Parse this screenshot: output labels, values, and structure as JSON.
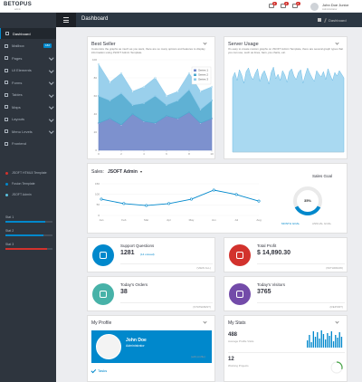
{
  "brand": {
    "name": "BETOPUS",
    "tagline": "admin"
  },
  "header": {
    "user": "John Doe Junior",
    "role": "Administrator",
    "badges": [
      "3",
      "4",
      "2"
    ]
  },
  "breadcrumb": {
    "title": "Dashboard",
    "trail": "Dashboard"
  },
  "sidebar": {
    "menu": [
      {
        "label": "Dashboard"
      },
      {
        "label": "Mailbox",
        "badge": "182"
      },
      {
        "label": "Pages",
        "submenu": true
      },
      {
        "label": "UI Elements",
        "submenu": true
      },
      {
        "label": "Forms",
        "submenu": true
      },
      {
        "label": "Tables",
        "submenu": true
      },
      {
        "label": "Maps",
        "submenu": true
      },
      {
        "label": "Layouts",
        "submenu": true
      },
      {
        "label": "Menu Levels",
        "submenu": true
      },
      {
        "label": "Frontend"
      }
    ],
    "projects": [
      {
        "label": "JSOFT HTML5 Template",
        "color": "#d2322d"
      },
      {
        "label": "Fusion Template",
        "color": "#0088cc"
      },
      {
        "label": "JSOFT Admin",
        "color": "#5bc0de"
      }
    ],
    "stats": [
      {
        "label": "Stat 1",
        "value": 85,
        "color": "#0088cc"
      },
      {
        "label": "Stat 2",
        "value": 80,
        "color": "#0088cc"
      },
      {
        "label": "Stat 3",
        "value": 88,
        "color": "#d2322d"
      }
    ]
  },
  "chart_data": [
    {
      "type": "area",
      "stacked": true,
      "title": "Best Seller",
      "subtitle": "Customize the graphs as much as you want, there are so many options and features to display information using JSOFT Admin Template.",
      "x": [
        0,
        1,
        2,
        3,
        4,
        5,
        6,
        7,
        8,
        9,
        10
      ],
      "series": [
        {
          "name": "Series 1",
          "color": "#6f85c9",
          "values": [
            30,
            35,
            28,
            40,
            32,
            30,
            38,
            35,
            42,
            30,
            35
          ]
        },
        {
          "name": "Series 2",
          "color": "#4ea8cf",
          "values": [
            30,
            20,
            35,
            10,
            20,
            30,
            12,
            20,
            25,
            15,
            20
          ]
        },
        {
          "name": "Series 3",
          "color": "#8fcbea",
          "values": [
            35,
            20,
            22,
            15,
            18,
            20,
            10,
            10,
            18,
            20,
            15
          ]
        }
      ],
      "xlim": [
        0,
        10
      ],
      "ylim": [
        0,
        100
      ],
      "xticks": [
        0,
        2,
        4,
        6,
        8,
        10
      ],
      "yticks": [
        0,
        20,
        40,
        60,
        80,
        100
      ],
      "grid": true,
      "legend": "top-right"
    },
    {
      "type": "area",
      "title": "Server Usage",
      "subtitle": "It's easy to create custom graphs on JSOFT Admin Template, there are several graph types that you can use, such as lines, bars, pie charts, etc.",
      "color": "#a9d9f1",
      "ylim": [
        0,
        100
      ],
      "values": [
        82,
        88,
        79,
        91,
        85,
        76,
        89,
        93,
        84,
        80,
        87,
        92,
        78,
        86,
        90,
        83,
        75,
        88,
        94,
        81,
        86,
        79,
        90,
        85,
        77,
        89,
        92,
        84,
        80,
        88,
        91,
        76,
        85,
        93,
        87,
        82,
        78,
        90,
        86,
        83,
        89,
        80,
        92,
        85,
        79,
        88,
        84,
        90,
        86,
        82
      ]
    },
    {
      "type": "line",
      "title": "Sales:",
      "selector": "JSOFT Admin",
      "categories": [
        "Jan",
        "Feb",
        "Mar",
        "Apr",
        "May",
        "Jun",
        "Jul",
        "Aug"
      ],
      "values": [
        77,
        56,
        47,
        56,
        77,
        120,
        99,
        68
      ],
      "color": "#0088cc",
      "ylim": [
        0,
        150
      ],
      "yticks": [
        0,
        50,
        100,
        150
      ],
      "grid": true
    },
    {
      "type": "gauge",
      "title": "Sales Goal",
      "value": 35,
      "value_label": "35%",
      "labels": [
        "MONTH GOAL",
        "ANNUAL GOAL"
      ],
      "color": "#0088cc"
    }
  ],
  "cards": [
    {
      "title": "Support Questions",
      "value": "1281",
      "note": "(14 unread)",
      "link": "(VIEW ALL)",
      "color": "#0088cc"
    },
    {
      "title": "Total Profit",
      "value": "$ 14,890.30",
      "link": "(WITHDRAW)",
      "color": "#d2322d"
    },
    {
      "title": "Today's Orders",
      "value": "38",
      "link": "(STATEMENT)",
      "color": "#47b2a8"
    },
    {
      "title": "Today's Visitors",
      "value": "3765",
      "link": "(REPORT)",
      "color": "#734ba9"
    }
  ],
  "profile": {
    "title": "My Profile",
    "name": "John Doe",
    "role": "Administrator",
    "edit": "(edit profile)",
    "tasks": "Tasks"
  },
  "my_stats": {
    "title": "My Stats",
    "rows": [
      {
        "value": "488",
        "label": "Average Profile Visits"
      },
      {
        "value": "12",
        "label": "Working Projects"
      }
    ],
    "bars": [
      40,
      70,
      30,
      90,
      60,
      85,
      50,
      95,
      75,
      45,
      80,
      65,
      90,
      35,
      70,
      55,
      85,
      60
    ],
    "bars_ylim": [
      0,
      100
    ],
    "progress": 30,
    "color": "#0088cc"
  }
}
